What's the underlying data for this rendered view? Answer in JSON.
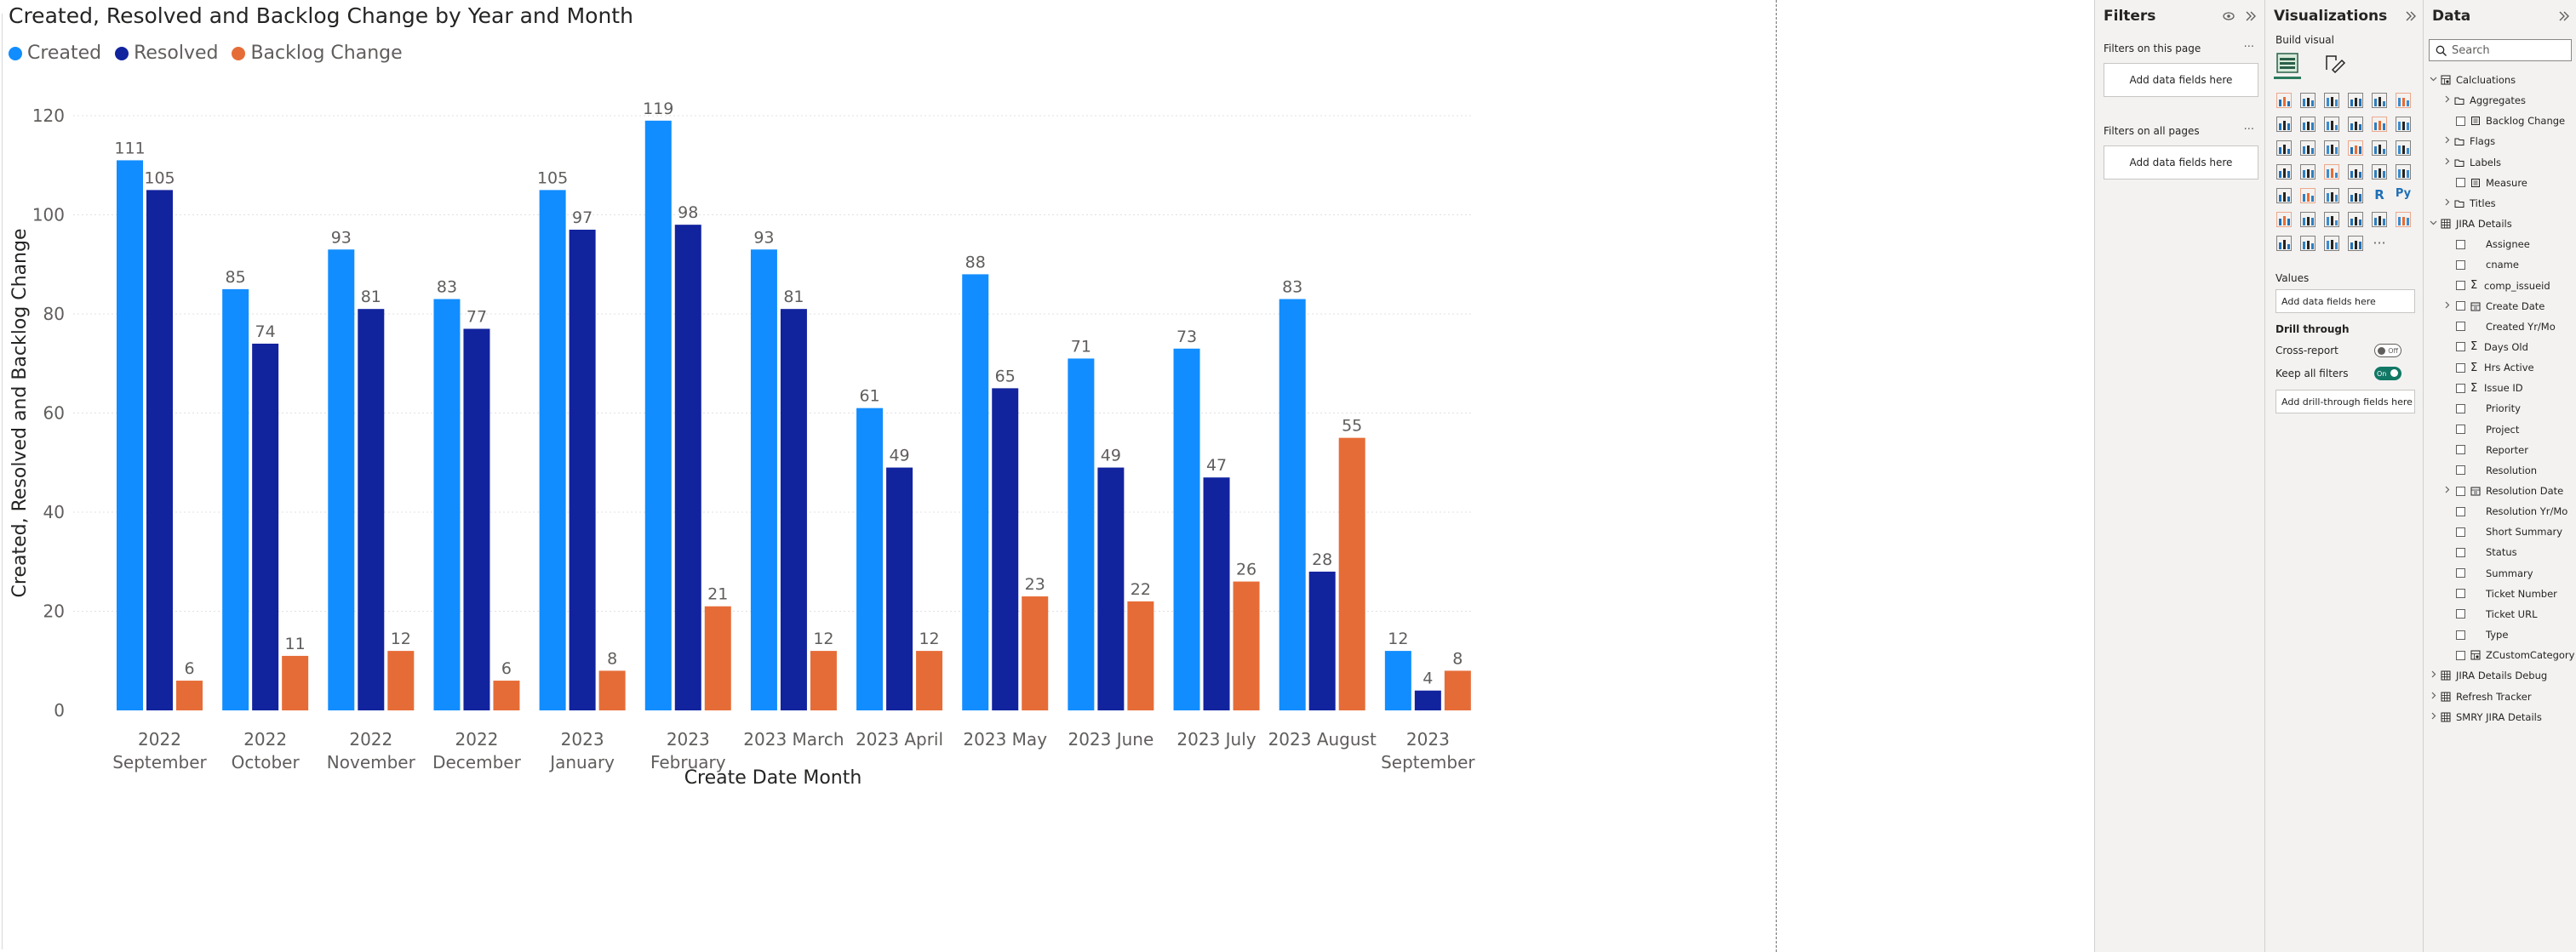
{
  "chart": {
    "title": "Created, Resolved and Backlog Change by Year and Month",
    "legend": [
      {
        "label": "Created",
        "color": "#118dff"
      },
      {
        "label": "Resolved",
        "color": "#12239e"
      },
      {
        "label": "Backlog Change",
        "color": "#e66c37"
      }
    ]
  },
  "chart_data": {
    "type": "bar",
    "title": "Created, Resolved and Backlog Change by Year and Month",
    "xlabel": "Create Date Month",
    "ylabel": "Created, Resolved and Backlog Change",
    "ylim": [
      0,
      120
    ],
    "yticks": [
      "0",
      "20",
      "40",
      "60",
      "80",
      "100",
      "120"
    ],
    "grid": true,
    "legend_position": "top-left",
    "categories": [
      [
        "2022",
        "September"
      ],
      [
        "2022",
        "October"
      ],
      [
        "2022",
        "November"
      ],
      [
        "2022",
        "December"
      ],
      [
        "2023",
        "January"
      ],
      [
        "2023",
        "February"
      ],
      [
        "2023 March"
      ],
      [
        "2023 April"
      ],
      [
        "2023 May"
      ],
      [
        "2023 June"
      ],
      [
        "2023 July"
      ],
      [
        "2023 August"
      ],
      [
        "2023",
        "September"
      ]
    ],
    "series": [
      {
        "name": "Created",
        "color": "#118dff",
        "values": [
          111,
          85,
          93,
          83,
          105,
          119,
          93,
          61,
          88,
          71,
          73,
          83,
          12
        ]
      },
      {
        "name": "Resolved",
        "color": "#12239e",
        "values": [
          105,
          74,
          81,
          77,
          97,
          98,
          81,
          49,
          65,
          49,
          47,
          28,
          4
        ]
      },
      {
        "name": "Backlog Change",
        "color": "#e66c37",
        "values": [
          6,
          11,
          12,
          6,
          8,
          21,
          12,
          12,
          23,
          22,
          26,
          55,
          8
        ]
      }
    ]
  },
  "filters": {
    "title": "Filters",
    "this_page_label": "Filters on this page",
    "all_pages_label": "Filters on all pages",
    "add_fields_1": "Add data fields here",
    "add_fields_2": "Add data fields here",
    "more": "···"
  },
  "viz": {
    "title": "Visualizations",
    "build_visual": "Build visual",
    "values_label": "Values",
    "values_well": "Add data fields here",
    "drill_title": "Drill through",
    "cross_report": "Cross-report",
    "cross_report_state": "Off",
    "keep_filters": "Keep all filters",
    "keep_filters_state": "On",
    "drill_well": "Add drill-through fields here",
    "r_label": "R",
    "py_label": "Py",
    "more": "···"
  },
  "data": {
    "title": "Data",
    "search_placeholder": "Search",
    "tree": [
      {
        "label": "Calcluations",
        "kind": "table-calc",
        "indent": 0,
        "chev": "v"
      },
      {
        "label": "Aggregates",
        "kind": "folder",
        "indent": 1,
        "chev": ">"
      },
      {
        "label": "Backlog Change",
        "kind": "measure",
        "indent": 1,
        "chev": "",
        "cb": true
      },
      {
        "label": "Flags",
        "kind": "folder",
        "indent": 1,
        "chev": ">"
      },
      {
        "label": "Labels",
        "kind": "folder",
        "indent": 1,
        "chev": ">"
      },
      {
        "label": "Measure",
        "kind": "measure",
        "indent": 1,
        "chev": "",
        "cb": true
      },
      {
        "label": "Titles",
        "kind": "folder",
        "indent": 1,
        "chev": ">"
      },
      {
        "label": "JIRA Details",
        "kind": "table",
        "indent": 0,
        "chev": "v"
      },
      {
        "label": "Assignee",
        "kind": "field",
        "indent": 1,
        "chev": "",
        "cb": true
      },
      {
        "label": "cname",
        "kind": "field",
        "indent": 1,
        "chev": "",
        "cb": true
      },
      {
        "label": "comp_issueid",
        "kind": "sigma",
        "indent": 1,
        "chev": "",
        "cb": true
      },
      {
        "label": "Create Date",
        "kind": "date",
        "indent": 1,
        "chev": ">",
        "cb": true
      },
      {
        "label": "Created Yr/Mo",
        "kind": "field",
        "indent": 1,
        "chev": "",
        "cb": true
      },
      {
        "label": "Days Old",
        "kind": "sigma",
        "indent": 1,
        "chev": "",
        "cb": true
      },
      {
        "label": "Hrs Active",
        "kind": "sigma",
        "indent": 1,
        "chev": "",
        "cb": true
      },
      {
        "label": "Issue ID",
        "kind": "sigma",
        "indent": 1,
        "chev": "",
        "cb": true
      },
      {
        "label": "Priority",
        "kind": "field",
        "indent": 1,
        "chev": "",
        "cb": true
      },
      {
        "label": "Project",
        "kind": "field",
        "indent": 1,
        "chev": "",
        "cb": true
      },
      {
        "label": "Reporter",
        "kind": "field",
        "indent": 1,
        "chev": "",
        "cb": true
      },
      {
        "label": "Resolution",
        "kind": "field",
        "indent": 1,
        "chev": "",
        "cb": true
      },
      {
        "label": "Resolution Date",
        "kind": "date",
        "indent": 1,
        "chev": ">",
        "cb": true
      },
      {
        "label": "Resolution Yr/Mo",
        "kind": "field",
        "indent": 1,
        "chev": "",
        "cb": true
      },
      {
        "label": "Short Summary",
        "kind": "field",
        "indent": 1,
        "chev": "",
        "cb": true
      },
      {
        "label": "Status",
        "kind": "field",
        "indent": 1,
        "chev": "",
        "cb": true
      },
      {
        "label": "Summary",
        "kind": "field",
        "indent": 1,
        "chev": "",
        "cb": true
      },
      {
        "label": "Ticket Number",
        "kind": "field",
        "indent": 1,
        "chev": "",
        "cb": true
      },
      {
        "label": "Ticket URL",
        "kind": "field",
        "indent": 1,
        "chev": "",
        "cb": true
      },
      {
        "label": "Type",
        "kind": "field",
        "indent": 1,
        "chev": "",
        "cb": true
      },
      {
        "label": "ZCustomCategory",
        "kind": "table-calc",
        "indent": 1,
        "chev": "",
        "cb": true
      },
      {
        "label": "JIRA Details Debug",
        "kind": "table",
        "indent": 0,
        "chev": ">"
      },
      {
        "label": "Refresh Tracker",
        "kind": "table",
        "indent": 0,
        "chev": ">"
      },
      {
        "label": "SMRY JIRA Details",
        "kind": "table",
        "indent": 0,
        "chev": ">"
      }
    ]
  }
}
